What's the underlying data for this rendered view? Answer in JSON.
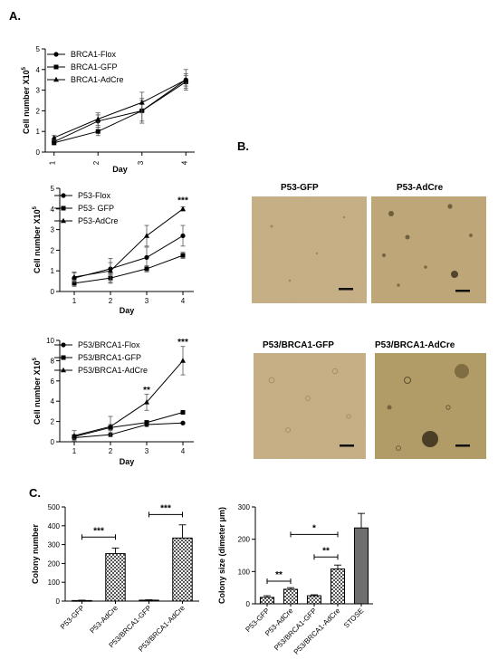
{
  "panel_labels": {
    "a": "A.",
    "b": "B.",
    "c": "C."
  },
  "micrographs": {
    "labels": [
      "P53-GFP",
      "P53-AdCre",
      "P53/BRCA1-GFP",
      "P53/BRCA1-AdCre"
    ],
    "colors": {
      "light": "#c8b086",
      "mid": "#bfa677",
      "dark": "#b19a63"
    }
  },
  "chart_data": [
    {
      "id": "growth1",
      "type": "line",
      "x": [
        1,
        2,
        3,
        4
      ],
      "xlim": [
        0.8,
        4.2
      ],
      "ylim": [
        0,
        5
      ],
      "yticks": [
        0,
        1,
        2,
        3,
        4,
        5
      ],
      "xticks_rotated": true,
      "xlabel": "Day",
      "ylabel": "Cell number X10",
      "ylabel_sup": "5",
      "series": [
        {
          "name": "BRCA1-Flox",
          "marker": "circle",
          "values": [
            0.5,
            1.5,
            2.0,
            3.5
          ],
          "err": [
            0.1,
            0.3,
            0.6,
            0.5
          ]
        },
        {
          "name": "BRCA1-GFP",
          "marker": "square",
          "values": [
            0.45,
            1.0,
            2.0,
            3.4
          ],
          "err": [
            0.1,
            0.2,
            0.5,
            0.3
          ]
        },
        {
          "name": "BRCA1-AdCre",
          "marker": "triangle",
          "values": [
            0.7,
            1.6,
            2.4,
            3.5
          ],
          "err": [
            0.1,
            0.3,
            0.5,
            0.3
          ]
        }
      ],
      "annotations": []
    },
    {
      "id": "growth2",
      "type": "line",
      "x": [
        1,
        2,
        3,
        4
      ],
      "xlim": [
        0.6,
        4.3
      ],
      "ylim": [
        0,
        5
      ],
      "yticks": [
        0,
        1,
        2,
        3,
        4,
        5
      ],
      "xticks_rotated": false,
      "xlabel": "Day",
      "ylabel": "Cell number X10",
      "ylabel_sup": "5",
      "series": [
        {
          "name": "P53-Flox",
          "marker": "circle",
          "values": [
            0.65,
            1.1,
            1.65,
            2.7
          ],
          "err": [
            0.25,
            0.3,
            0.5,
            0.5
          ]
        },
        {
          "name": "P53- GFP",
          "marker": "square",
          "values": [
            0.4,
            0.65,
            1.1,
            1.75
          ],
          "err": [
            0.15,
            0.2,
            0.15,
            0.15
          ]
        },
        {
          "name": "P53-AdCre",
          "marker": "triangle",
          "values": [
            0.7,
            1.0,
            2.7,
            4.0
          ],
          "err": [
            0.25,
            0.6,
            0.5,
            0.1
          ]
        }
      ],
      "annotations": [
        {
          "x": 4,
          "y": 4.4,
          "text": "***"
        }
      ]
    },
    {
      "id": "growth3",
      "type": "line",
      "x": [
        1,
        2,
        3,
        4
      ],
      "xlim": [
        0.6,
        4.3
      ],
      "ylim": [
        0,
        10
      ],
      "yticks": [
        0,
        2,
        4,
        6,
        8,
        10
      ],
      "xticks_rotated": false,
      "xlabel": "Day",
      "ylabel": "Cell number X10",
      "ylabel_sup": "5",
      "series": [
        {
          "name": "P53/BRCA1-Flox",
          "marker": "circle",
          "values": [
            0.4,
            0.7,
            1.7,
            1.85
          ],
          "err": [
            0.2,
            0.2,
            0.2,
            0.1
          ]
        },
        {
          "name": "P53/BRCA1-GFP",
          "marker": "square",
          "values": [
            0.5,
            1.4,
            1.9,
            2.9
          ],
          "err": [
            0.2,
            0.3,
            0.2,
            0.1
          ]
        },
        {
          "name": "P53/BRCA1-AdCre",
          "marker": "triangle",
          "values": [
            0.6,
            1.5,
            3.9,
            8.0
          ],
          "err": [
            0.5,
            1.0,
            0.8,
            1.4
          ]
        }
      ],
      "annotations": [
        {
          "x": 3,
          "y": 5.1,
          "text": "**"
        },
        {
          "x": 4,
          "y": 9.8,
          "text": "***"
        }
      ]
    },
    {
      "id": "colony_number",
      "type": "bar",
      "categories": [
        "P53-GFP",
        "P53-AdCre",
        "P53/BRCA1-GFP",
        "P53/BRCA1-AdCre"
      ],
      "values": [
        3,
        252,
        5,
        335
      ],
      "err": [
        2,
        30,
        2,
        70
      ],
      "patterns": [
        "check",
        "check",
        "check",
        "check"
      ],
      "ylim": [
        0,
        500
      ],
      "yticks": [
        0,
        100,
        200,
        300,
        400,
        500
      ],
      "xlabel": "",
      "ylabel": "Colony number",
      "brackets": [
        {
          "from": 0,
          "to": 1,
          "y": 340,
          "text": "***"
        },
        {
          "from": 2,
          "to": 3,
          "y": 460,
          "text": "***"
        }
      ]
    },
    {
      "id": "colony_size",
      "type": "bar",
      "categories": [
        "P53-GFP",
        "P53-AdCre",
        "P53/BRCA1-GFP",
        "P53/BRCA1-AdCre",
        "STOSE"
      ],
      "values": [
        20,
        45,
        25,
        108,
        235
      ],
      "err": [
        5,
        5,
        3,
        12,
        45
      ],
      "patterns": [
        "check",
        "check",
        "check",
        "check",
        "solid"
      ],
      "ylim": [
        0,
        300
      ],
      "yticks": [
        0,
        100,
        200,
        300
      ],
      "xlabel": "",
      "ylabel": "Colony size (dimeter μm)",
      "brackets": [
        {
          "from": 0,
          "to": 1,
          "y": 70,
          "text": "**"
        },
        {
          "from": 2,
          "to": 3,
          "y": 145,
          "text": "**"
        },
        {
          "from": 1,
          "to": 3,
          "y": 215,
          "text": "*"
        }
      ]
    }
  ]
}
